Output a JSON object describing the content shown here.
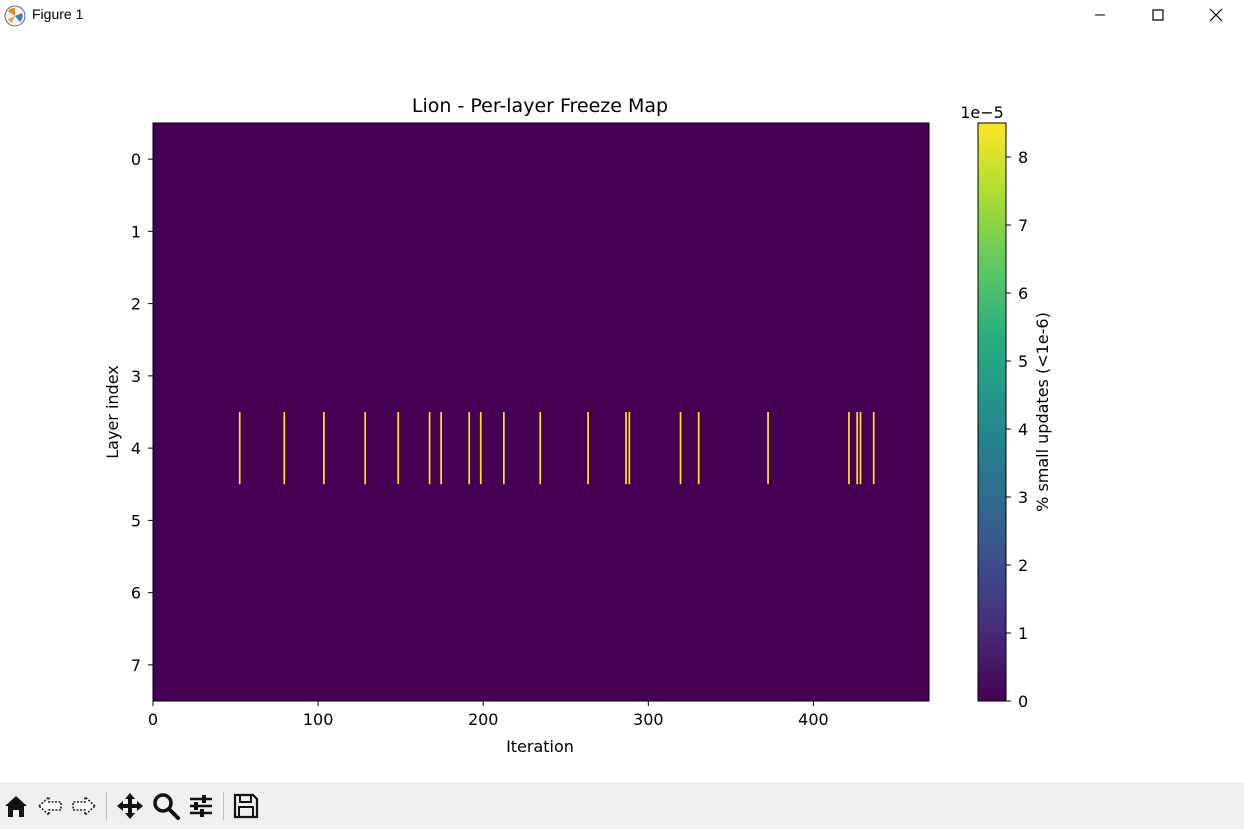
{
  "window": {
    "title": "Figure 1",
    "controls": [
      "minimize-icon",
      "maximize-icon",
      "close-icon"
    ]
  },
  "toolbar": {
    "buttons": [
      "home-icon",
      "back-icon",
      "forward-icon",
      "pan-icon",
      "zoom-icon",
      "configure-icon",
      "save-icon"
    ]
  },
  "chart_data": {
    "type": "heatmap",
    "title": "Lion - Per-layer Freeze Map",
    "xlabel": "Iteration",
    "ylabel": "Layer index",
    "xlim": [
      0,
      470
    ],
    "ylim": [
      7.5,
      -0.5
    ],
    "x_ticks": [
      0,
      100,
      200,
      300,
      400
    ],
    "y_ticks": [
      0,
      1,
      2,
      3,
      4,
      5,
      6,
      7
    ],
    "rows": 8,
    "columns": 470,
    "background_value": 0,
    "nonzero_cells": {
      "layer": 4,
      "value": 8.5e-05,
      "iterations": [
        52,
        79,
        103,
        128,
        148,
        167,
        174,
        191,
        198,
        212,
        234,
        263,
        286,
        288,
        319,
        330,
        372,
        421,
        426,
        428,
        436
      ]
    },
    "colorbar": {
      "label": "% small updates (<1e-6)",
      "offset_text": "1e−5",
      "ticks": [
        0,
        1,
        2,
        3,
        4,
        5,
        6,
        7,
        8
      ],
      "vmin": 0,
      "vmax": 8.5,
      "colormap": "viridis"
    },
    "colors": {
      "low": "#440154",
      "high": "#fde725"
    }
  }
}
